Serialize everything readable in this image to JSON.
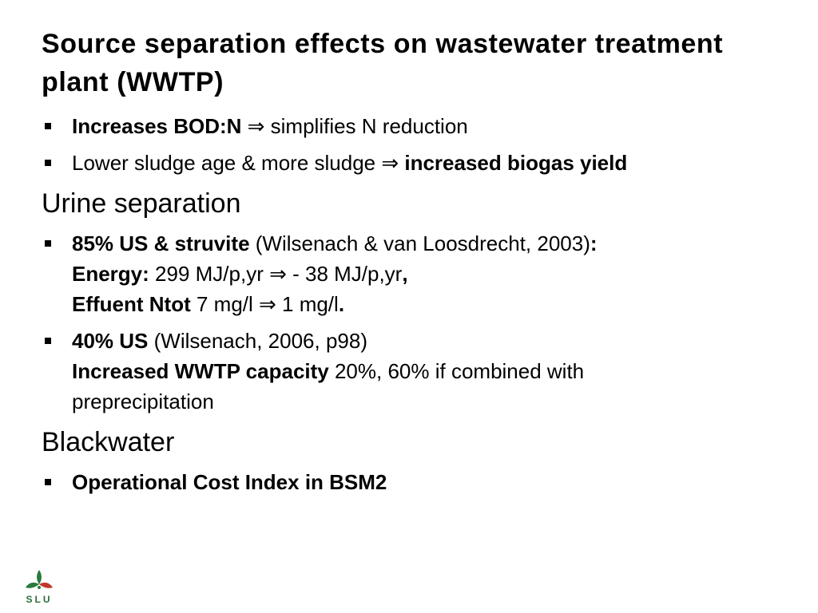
{
  "title": "Source separation effects on wastewater treatment plant (WWTP)",
  "sections": [
    {
      "bullets": [
        {
          "lines": [
            [
              {
                "text": "Increases BOD:N",
                "bold": true
              },
              {
                "text": " ⇒ simplifies N reduction",
                "bold": false
              }
            ]
          ]
        },
        {
          "lines": [
            [
              {
                "text": "Lower sludge age & more sludge ⇒ ",
                "bold": false
              },
              {
                "text": "increased biogas yield",
                "bold": true
              }
            ]
          ]
        }
      ]
    },
    {
      "heading": "Urine separation",
      "bullets": [
        {
          "lines": [
            [
              {
                "text": "85% US & struvite",
                "bold": true
              },
              {
                "text": " (Wilsenach & van Loosdrecht, 2003)",
                "bold": false
              },
              {
                "text": ":",
                "bold": true
              }
            ],
            [
              {
                "text": "Energy:",
                "bold": true
              },
              {
                "text": " 299 MJ/p,yr ⇒ - 38 MJ/p,yr",
                "bold": false
              },
              {
                "text": ",",
                "bold": true
              }
            ],
            [
              {
                "text": "Effuent Ntot",
                "bold": true
              },
              {
                "text": " 7 mg/l ⇒ 1 mg/l",
                "bold": false
              },
              {
                "text": ".",
                "bold": true
              }
            ]
          ]
        },
        {
          "lines": [
            [
              {
                "text": "40% US",
                "bold": true
              },
              {
                "text": " (Wilsenach, 2006, p98)",
                "bold": false
              }
            ],
            [
              {
                "text": "Increased WWTP capacity",
                "bold": true
              },
              {
                "text": " 20%, 60% if combined with",
                "bold": false
              }
            ],
            [
              {
                "text": "preprecipitation",
                "bold": false
              }
            ]
          ]
        }
      ]
    },
    {
      "heading": "Blackwater",
      "bullets": [
        {
          "lines": [
            [
              {
                "text": "Operational Cost Index in BSM2",
                "bold": true
              }
            ]
          ]
        }
      ]
    }
  ],
  "logo": "SLU"
}
